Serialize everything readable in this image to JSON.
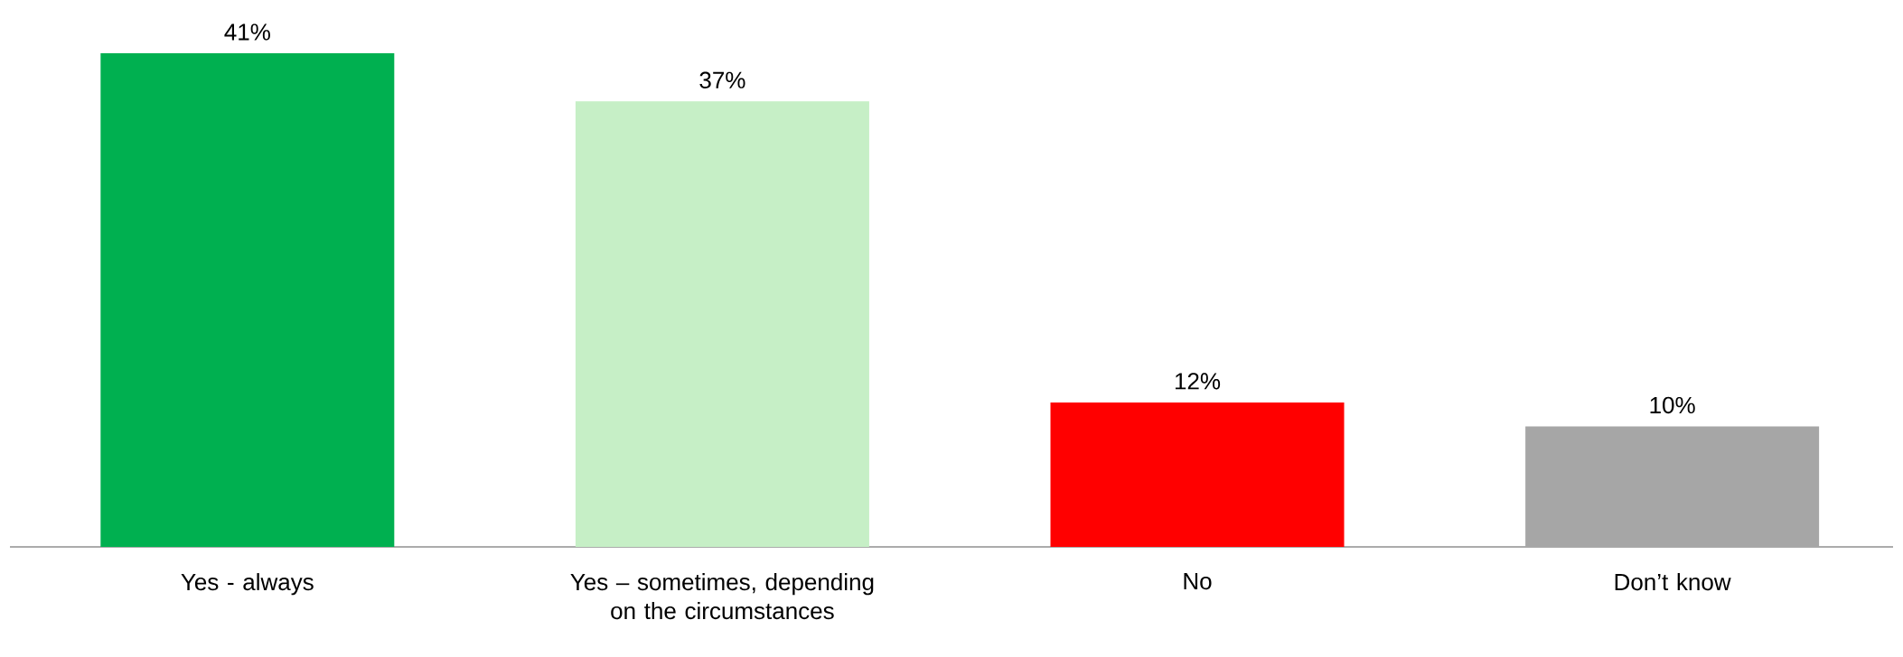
{
  "chart_data": {
    "type": "bar",
    "categories": [
      "Yes - always",
      "Yes – sometimes, depending on the circumstances",
      "No",
      "Don’t know"
    ],
    "values": [
      41,
      37,
      12,
      10
    ],
    "colors": [
      "#00b050",
      "#c6efc6",
      "#ff0000",
      "#a6a6a6"
    ],
    "value_labels": [
      "41%",
      "37%",
      "12%",
      "10%"
    ]
  }
}
